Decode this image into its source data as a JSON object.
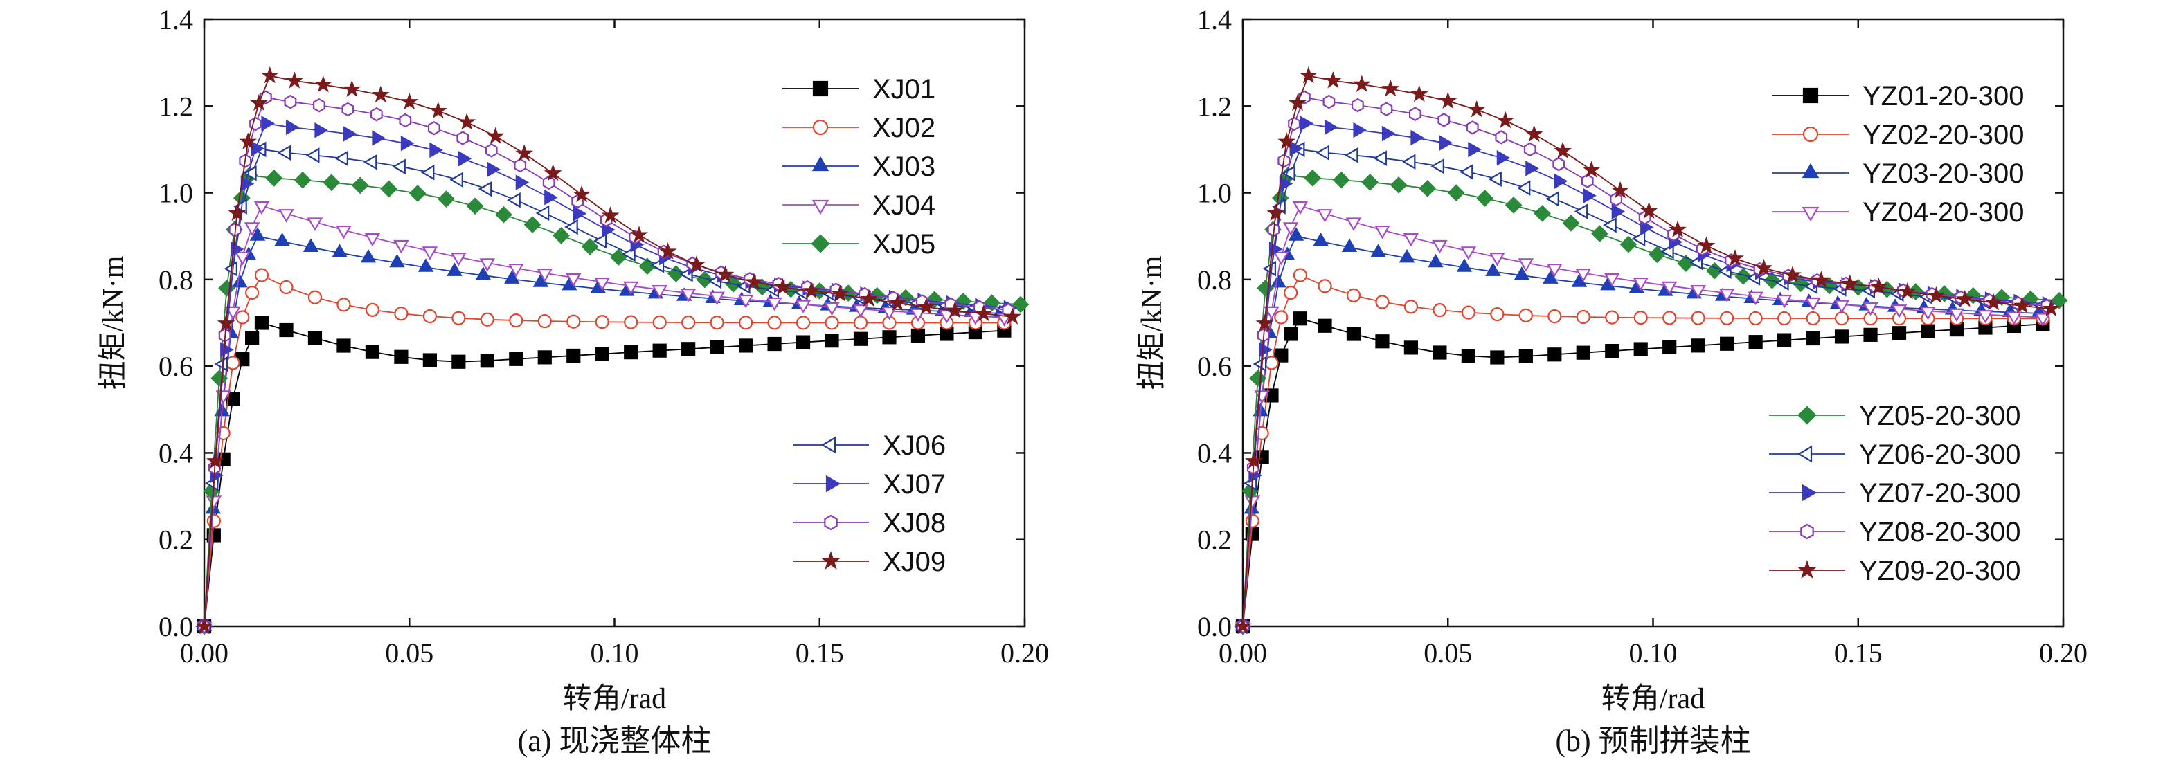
{
  "chart_data": [
    {
      "type": "line",
      "caption": "(a) 现浇整体柱",
      "xlabel": "转角/rad",
      "ylabel": "扭矩/kN·m",
      "xlim": [
        0,
        0.2
      ],
      "ylim": [
        0,
        1.4
      ],
      "xticks": [
        "0.00",
        "0.05",
        "0.10",
        "0.15",
        "0.20"
      ],
      "yticks": [
        "0.0",
        "0.2",
        "0.4",
        "0.6",
        "0.8",
        "1.0",
        "1.2",
        "1.4"
      ],
      "legend_groups": [
        [
          "XJ01",
          "XJ02",
          "XJ03",
          "XJ04",
          "XJ05"
        ],
        [
          "XJ06",
          "XJ07",
          "XJ08",
          "XJ09"
        ]
      ],
      "series": [
        {
          "name": "XJ01",
          "marker": "square",
          "color": "#000000",
          "fill": "#000000",
          "peak": 0.7,
          "peakX": 0.014,
          "end": 0.685,
          "type": "low"
        },
        {
          "name": "XJ02",
          "marker": "circle",
          "color": "#e0452e",
          "fill": "none",
          "peak": 0.81,
          "peakX": 0.014,
          "end": 0.7,
          "type": "low2"
        },
        {
          "name": "XJ03",
          "marker": "triangle-up",
          "color": "#1f3fb5",
          "fill": "#1f3fb5",
          "peak": 0.9,
          "peakX": 0.013,
          "end": 0.72,
          "type": "mid"
        },
        {
          "name": "XJ04",
          "marker": "triangle-down",
          "color": "#a64ac9",
          "fill": "none",
          "peak": 0.97,
          "peakX": 0.014,
          "end": 0.71,
          "type": "mid"
        },
        {
          "name": "XJ05",
          "marker": "diamond",
          "color": "#2a8a3a",
          "fill": "#2a8a3a",
          "peak": 1.04,
          "peakX": 0.011,
          "end": 0.72,
          "type": "high"
        },
        {
          "name": "XJ06",
          "marker": "triangle-left",
          "color": "#1f3a9a",
          "fill": "none",
          "peak": 1.1,
          "peakX": 0.014,
          "end": 0.7,
          "type": "high"
        },
        {
          "name": "XJ07",
          "marker": "triangle-right",
          "color": "#3a3ac0",
          "fill": "#3a3ac0",
          "peak": 1.16,
          "peakX": 0.015,
          "end": 0.7,
          "type": "high"
        },
        {
          "name": "XJ08",
          "marker": "hexagon",
          "color": "#8a3cb8",
          "fill": "none",
          "peak": 1.22,
          "peakX": 0.015,
          "end": 0.69,
          "type": "high"
        },
        {
          "name": "XJ09",
          "marker": "star",
          "color": "#7a1a1a",
          "fill": "#7a1a1a",
          "peak": 1.27,
          "peakX": 0.016,
          "end": 0.67,
          "type": "high"
        }
      ]
    },
    {
      "type": "line",
      "caption": "(b) 预制拼装柱",
      "xlabel": "转角/rad",
      "ylabel": "扭矩/kN·m",
      "xlim": [
        0,
        0.2
      ],
      "ylim": [
        0,
        1.4
      ],
      "xticks": [
        "0.00",
        "0.05",
        "0.10",
        "0.15",
        "0.20"
      ],
      "yticks": [
        "0.0",
        "0.2",
        "0.4",
        "0.6",
        "0.8",
        "1.0",
        "1.2",
        "1.4"
      ],
      "legend_groups": [
        [
          "YZ01-20-300",
          "YZ02-20-300",
          "YZ03-20-300",
          "YZ04-20-300"
        ],
        [
          "YZ05-20-300",
          "YZ06-20-300",
          "YZ07-20-300",
          "YZ08-20-300",
          "YZ09-20-300"
        ]
      ],
      "series": [
        {
          "name": "YZ01-20-300",
          "marker": "square",
          "color": "#000000",
          "fill": "#000000",
          "peak": 0.71,
          "peakX": 0.014,
          "end": 0.7,
          "type": "low"
        },
        {
          "name": "YZ02-20-300",
          "marker": "circle",
          "color": "#e0452e",
          "fill": "none",
          "peak": 0.81,
          "peakX": 0.014,
          "end": 0.71,
          "type": "low2"
        },
        {
          "name": "YZ03-20-300",
          "marker": "triangle-up",
          "color": "#1f3fb5",
          "fill": "#1f3fb5",
          "peak": 0.9,
          "peakX": 0.013,
          "end": 0.72,
          "type": "mid"
        },
        {
          "name": "YZ04-20-300",
          "marker": "triangle-down",
          "color": "#a64ac9",
          "fill": "none",
          "peak": 0.97,
          "peakX": 0.014,
          "end": 0.71,
          "type": "mid"
        },
        {
          "name": "YZ05-20-300",
          "marker": "diamond",
          "color": "#2a8a3a",
          "fill": "#2a8a3a",
          "peak": 1.04,
          "peakX": 0.011,
          "end": 0.73,
          "type": "high"
        },
        {
          "name": "YZ06-20-300",
          "marker": "triangle-left",
          "color": "#1f3a9a",
          "fill": "none",
          "peak": 1.1,
          "peakX": 0.014,
          "end": 0.71,
          "type": "high"
        },
        {
          "name": "YZ07-20-300",
          "marker": "triangle-right",
          "color": "#3a3ac0",
          "fill": "#3a3ac0",
          "peak": 1.16,
          "peakX": 0.015,
          "end": 0.71,
          "type": "high"
        },
        {
          "name": "YZ08-20-300",
          "marker": "hexagon",
          "color": "#8a3cb8",
          "fill": "none",
          "peak": 1.22,
          "peakX": 0.015,
          "end": 0.7,
          "type": "high"
        },
        {
          "name": "YZ09-20-300",
          "marker": "star",
          "color": "#7a1a1a",
          "fill": "#7a1a1a",
          "peak": 1.27,
          "peakX": 0.016,
          "end": 0.69,
          "type": "high"
        }
      ]
    }
  ]
}
